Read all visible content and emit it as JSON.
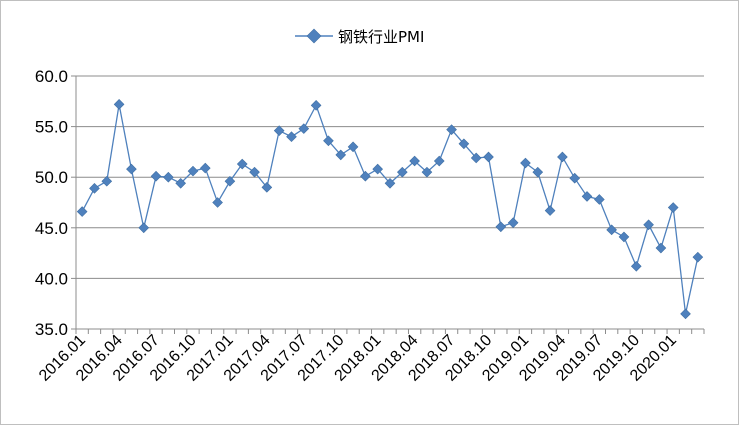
{
  "chart_data": {
    "type": "line",
    "title": "",
    "xlabel": "",
    "ylabel": "",
    "ylim": [
      35,
      60
    ],
    "yticks": [
      "60.0",
      "55.0",
      "50.0",
      "45.0",
      "40.0",
      "35.0"
    ],
    "grid": "horizontal",
    "legend_position": "top-center",
    "x": [
      "2016.01",
      "2016.02",
      "2016.03",
      "2016.04",
      "2016.05",
      "2016.06",
      "2016.07",
      "2016.08",
      "2016.09",
      "2016.10",
      "2016.11",
      "2016.12",
      "2017.01",
      "2017.02",
      "2017.03",
      "2017.04",
      "2017.05",
      "2017.06",
      "2017.07",
      "2017.08",
      "2017.09",
      "2017.10",
      "2017.11",
      "2017.12",
      "2018.01",
      "2018.02",
      "2018.03",
      "2018.04",
      "2018.05",
      "2018.06",
      "2018.07",
      "2018.08",
      "2018.09",
      "2018.10",
      "2018.11",
      "2018.12",
      "2019.01",
      "2019.02",
      "2019.03",
      "2019.04",
      "2019.05",
      "2019.06",
      "2019.07",
      "2019.08",
      "2019.09",
      "2019.10",
      "2019.11",
      "2019.12",
      "2020.01",
      "2020.02",
      "2020.03"
    ],
    "xtick_labels": [
      "2016.01",
      "2016.04",
      "2016.07",
      "2016.10",
      "2017.01",
      "2017.04",
      "2017.07",
      "2017.10",
      "2018.01",
      "2018.04",
      "2018.07",
      "2018.10",
      "2019.01",
      "2019.04",
      "2019.07",
      "2019.10",
      "2020.01"
    ],
    "series": [
      {
        "name": "钢铁行业PMI",
        "color": "#4f81bd",
        "values": [
          46.6,
          48.9,
          49.6,
          57.2,
          50.8,
          45.0,
          50.1,
          50.0,
          49.4,
          50.6,
          50.9,
          47.5,
          49.6,
          51.3,
          50.5,
          49.0,
          54.6,
          54.0,
          54.8,
          57.1,
          53.6,
          52.2,
          53.0,
          50.1,
          50.8,
          49.4,
          50.5,
          51.6,
          50.5,
          51.6,
          54.7,
          53.3,
          51.9,
          52.0,
          45.1,
          45.5,
          51.4,
          50.5,
          46.7,
          52.0,
          49.9,
          48.1,
          47.8,
          44.8,
          44.1,
          41.2,
          45.3,
          43.0,
          47.0,
          36.5,
          42.1
        ]
      }
    ]
  }
}
